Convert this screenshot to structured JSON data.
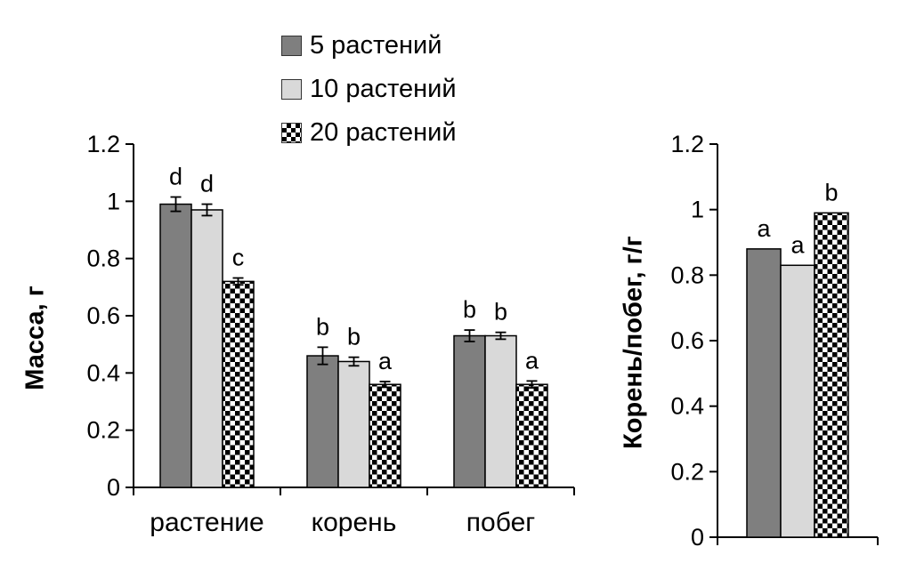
{
  "page": {
    "background": "#ffffff"
  },
  "legend": {
    "items": [
      {
        "label": "5 растений",
        "fill": "#7f7f7f"
      },
      {
        "label": "10 растений",
        "fill": "#d9d9d9"
      },
      {
        "label": "20 растений",
        "fill": "checker"
      }
    ]
  },
  "chart_data": [
    {
      "type": "bar",
      "title": "",
      "xlabel": "",
      "ylabel": "Масса, г",
      "ylim": [
        0,
        1.2
      ],
      "yticks": [
        "0",
        "0.2",
        "0.4",
        "0.6",
        "0.8",
        "1",
        "1.2"
      ],
      "categories": [
        "растение",
        "корень",
        "побег"
      ],
      "series": [
        {
          "name": "5 растений",
          "fill": "#7f7f7f",
          "values": [
            0.99,
            0.46,
            0.53
          ],
          "errors": [
            0.025,
            0.03,
            0.02
          ],
          "letters": [
            "d",
            "b",
            "b"
          ]
        },
        {
          "name": "10 растений",
          "fill": "#d9d9d9",
          "values": [
            0.97,
            0.44,
            0.53
          ],
          "errors": [
            0.02,
            0.015,
            0.012
          ],
          "letters": [
            "d",
            "b",
            "b"
          ]
        },
        {
          "name": "20 растений",
          "fill": "checker",
          "values": [
            0.72,
            0.36,
            0.36
          ],
          "errors": [
            0.012,
            0.01,
            0.012
          ],
          "letters": [
            "c",
            "a",
            "a"
          ]
        }
      ],
      "legend_position": "top",
      "grid": false
    },
    {
      "type": "bar",
      "title": "",
      "xlabel": "",
      "ylabel": "Корень/побег, г/г",
      "ylim": [
        0,
        1.2
      ],
      "yticks": [
        "0",
        "0.2",
        "0.4",
        "0.6",
        "0.8",
        "1",
        "1.2"
      ],
      "categories": [
        ""
      ],
      "series": [
        {
          "name": "5 растений",
          "fill": "#7f7f7f",
          "values": [
            0.88
          ],
          "letters": [
            "a"
          ]
        },
        {
          "name": "10 растений",
          "fill": "#d9d9d9",
          "values": [
            0.83
          ],
          "letters": [
            "a"
          ]
        },
        {
          "name": "20 растений",
          "fill": "checker",
          "values": [
            0.99
          ],
          "letters": [
            "b"
          ]
        }
      ],
      "grid": false
    }
  ]
}
